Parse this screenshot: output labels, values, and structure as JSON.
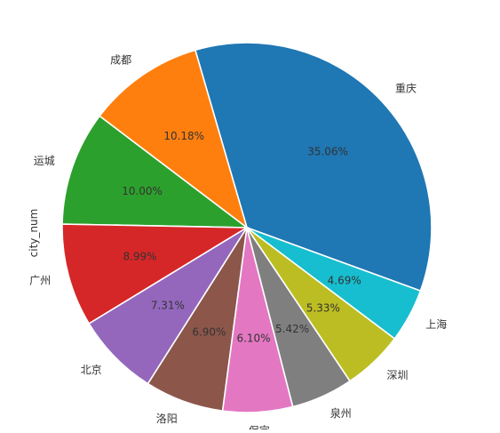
{
  "chart_data": {
    "type": "pie",
    "title": "",
    "ylabel": "city_num",
    "start_angle_deg": -20,
    "direction": "counterclockwise",
    "categories": [
      "重庆",
      "成都",
      "运城",
      "广州",
      "北京",
      "洛阳",
      "保定",
      "泉州",
      "深圳",
      "上海"
    ],
    "percent_labels": [
      "35.06%",
      "10.18%",
      "10.00%",
      "8.99%",
      "7.31%",
      "6.90%",
      "6.10%",
      "5.42%",
      "5.33%",
      "4.69%"
    ],
    "values": [
      35.06,
      10.18,
      10.0,
      8.99,
      7.31,
      6.9,
      6.1,
      5.42,
      5.33,
      4.69
    ],
    "colors": [
      "#1f77b4",
      "#ff7f0e",
      "#2ca02c",
      "#d62728",
      "#9467bd",
      "#8c564b",
      "#e377c2",
      "#7f7f7f",
      "#bcbd22",
      "#17becf"
    ]
  }
}
